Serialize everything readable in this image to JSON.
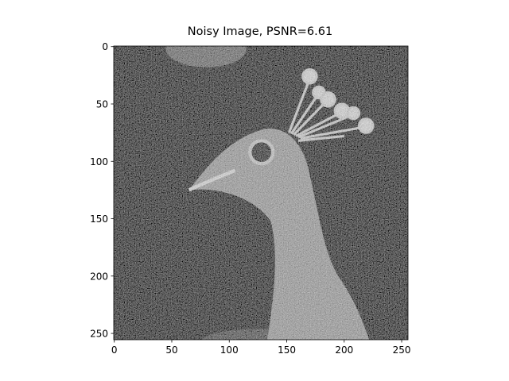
{
  "chart_data": {
    "type": "image",
    "title": "Noisy Image, PSNR=6.61",
    "xlim": [
      -0.5,
      255.5
    ],
    "ylim": [
      255.5,
      -0.5
    ],
    "xticks": [
      0,
      50,
      100,
      150,
      200,
      250
    ],
    "yticks": [
      0,
      50,
      100,
      150,
      200,
      250
    ]
  }
}
